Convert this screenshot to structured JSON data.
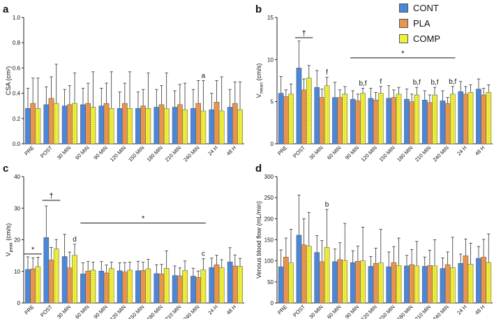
{
  "legend": {
    "items": [
      {
        "label": "CONT",
        "color": "#4A86D9"
      },
      {
        "label": "PLA",
        "color": "#E8944E"
      },
      {
        "label": "COMP",
        "color": "#F0F03C"
      }
    ]
  },
  "chart_data": [
    {
      "panel": "a",
      "type": "bar",
      "ylabel": "CSA (cm²)",
      "ylim": [
        0,
        1.0
      ],
      "yticks": [
        "0.0",
        "0.2",
        "0.4",
        "0.6",
        "0.8",
        "1.0"
      ],
      "categories": [
        "PRE",
        "POST",
        "30 MIN",
        "60 MIN",
        "90 MIN",
        "120 MIN",
        "150 MIN",
        "180 MIN",
        "210 MIN",
        "240 MIN",
        "24 H",
        "48 H"
      ],
      "series": [
        {
          "name": "CONT",
          "values": [
            0.28,
            0.31,
            0.3,
            0.31,
            0.3,
            0.28,
            0.28,
            0.29,
            0.29,
            0.28,
            0.27,
            0.29
          ],
          "errors": [
            0.16,
            0.14,
            0.13,
            0.13,
            0.14,
            0.13,
            0.13,
            0.14,
            0.13,
            0.15,
            0.13,
            0.14
          ]
        },
        {
          "name": "PLA",
          "values": [
            0.32,
            0.36,
            0.31,
            0.32,
            0.32,
            0.32,
            0.3,
            0.31,
            0.31,
            0.32,
            0.33,
            0.32
          ],
          "errors": [
            0.2,
            0.17,
            0.15,
            0.16,
            0.16,
            0.16,
            0.13,
            0.15,
            0.16,
            0.18,
            0.17,
            0.17
          ]
        },
        {
          "name": "COMP",
          "values": [
            0.28,
            0.32,
            0.32,
            0.29,
            0.28,
            0.28,
            0.28,
            0.28,
            0.27,
            0.26,
            0.26,
            0.27
          ],
          "errors": [
            0.24,
            0.31,
            0.24,
            0.28,
            0.29,
            0.29,
            0.28,
            0.28,
            0.21,
            0.24,
            0.27,
            0.22
          ]
        }
      ],
      "annotations": [
        {
          "text": "a",
          "category": "240 MIN",
          "series": "COMP"
        }
      ],
      "brackets": []
    },
    {
      "panel": "b",
      "type": "bar",
      "ylabel_main": "V",
      "ylabel_sub": "mean",
      "ylabel_unit": " (cm/s)",
      "ylim": [
        0,
        15
      ],
      "yticks": [
        "0",
        "5",
        "10",
        "15"
      ],
      "categories": [
        "PRE",
        "POST",
        "30 MIN",
        "60 MIN",
        "90 MIN",
        "120 MIN",
        "150 MIN",
        "180 MIN",
        "210 MIN",
        "240 MIN",
        "24 H",
        "48 H"
      ],
      "series": [
        {
          "name": "CONT",
          "values": [
            6.0,
            9.0,
            6.7,
            5.5,
            5.3,
            5.4,
            5.4,
            5.3,
            5.2,
            5.1,
            6.2,
            6.5
          ],
          "errors": [
            2.0,
            3.2,
            2.0,
            1.8,
            1.0,
            1.2,
            1.5,
            1.2,
            1.1,
            1.2,
            1.2,
            1.2
          ]
        },
        {
          "name": "PLA",
          "values": [
            5.6,
            6.4,
            5.5,
            5.5,
            5.1,
            5.2,
            5.5,
            5.0,
            4.9,
            4.8,
            5.9,
            5.8
          ],
          "errors": [
            0.8,
            1.3,
            1.0,
            0.9,
            0.8,
            0.9,
            0.9,
            0.9,
            0.9,
            0.7,
            0.9,
            0.8
          ]
        },
        {
          "name": "COMP",
          "values": [
            5.9,
            7.8,
            6.9,
            5.9,
            6.0,
            6.0,
            5.9,
            5.8,
            5.8,
            5.9,
            6.1,
            6.1
          ],
          "errors": [
            1.2,
            1.5,
            1.0,
            0.9,
            0.6,
            0.8,
            0.8,
            0.9,
            0.9,
            0.9,
            0.9,
            0.9
          ]
        }
      ],
      "annotations": [
        {
          "text": "f",
          "category": "30 MIN",
          "series": "COMP"
        },
        {
          "text": "b,f",
          "category": "90 MIN",
          "series": "COMP"
        },
        {
          "text": "f",
          "category": "120 MIN",
          "series": "COMP"
        },
        {
          "text": "b,f",
          "category": "180 MIN",
          "series": "COMP"
        },
        {
          "text": "b,f",
          "category": "210 MIN",
          "series": "COMP"
        },
        {
          "text": "b,f",
          "category": "240 MIN",
          "series": "COMP"
        }
      ],
      "brackets": [
        {
          "text": "†",
          "from": "POST",
          "to": "POST",
          "level": 12.6
        },
        {
          "text": "*",
          "from": "90 MIN",
          "to": "240 MIN",
          "level": 10.2
        }
      ]
    },
    {
      "panel": "c",
      "type": "bar",
      "ylabel_main": "V",
      "ylabel_sub": "peak",
      "ylabel_unit": " (cm/s)",
      "ylim": [
        0,
        40
      ],
      "yticks": [
        "0",
        "10",
        "20",
        "30",
        "40"
      ],
      "categories": [
        "PRE",
        "POST",
        "30 MIN",
        "60 MIN",
        "90 MIN",
        "120 MIN",
        "150 MIN",
        "180 MIN",
        "210 MIN",
        "240 MIN",
        "24 H",
        "48 H"
      ],
      "series": [
        {
          "name": "CONT",
          "values": [
            10.6,
            20.7,
            14.7,
            9.2,
            10.1,
            10.2,
            10.2,
            9.3,
            8.7,
            8.5,
            11.2,
            13.0
          ],
          "errors": [
            4.0,
            10.0,
            7.0,
            3.5,
            3.0,
            2.5,
            3.0,
            2.8,
            3.0,
            2.5,
            3.0,
            4.5
          ]
        },
        {
          "name": "PLA",
          "values": [
            10.8,
            13.6,
            11.1,
            10.1,
            9.5,
            9.8,
            10.3,
            9.2,
            8.6,
            8.1,
            12.1,
            11.7
          ],
          "errors": [
            3.5,
            4.0,
            5.0,
            3.0,
            2.5,
            3.0,
            2.6,
            3.0,
            2.5,
            2.0,
            3.0,
            3.5
          ]
        },
        {
          "name": "COMP",
          "values": [
            11.5,
            17.1,
            15.1,
            10.4,
            10.9,
            10.4,
            10.8,
            11.0,
            10.3,
            10.5,
            11.2,
            11.6
          ],
          "errors": [
            3.0,
            3.0,
            3.5,
            2.5,
            2.0,
            2.5,
            3.0,
            5.5,
            3.0,
            3.5,
            2.5,
            2.5
          ]
        }
      ],
      "annotations": [
        {
          "text": "d",
          "category": "30 MIN",
          "series": "COMP"
        },
        {
          "text": "c",
          "category": "240 MIN",
          "series": "COMP"
        }
      ],
      "brackets": [
        {
          "text": "*",
          "from": "PRE",
          "to": "PRE",
          "level": 15.5
        },
        {
          "text": "†",
          "from": "POST",
          "to": "POST",
          "level": 32.5
        },
        {
          "text": "*",
          "from": "60 MIN",
          "to": "240 MIN",
          "level": 25.3
        }
      ]
    },
    {
      "panel": "d",
      "type": "bar",
      "ylabel": "Venous blood flow (mL/min)",
      "ylim": [
        0,
        300
      ],
      "yticks": [
        "0",
        "50",
        "100",
        "150",
        "200",
        "250",
        "300"
      ],
      "categories": [
        "PRE",
        "POST",
        "30 MIN",
        "60 MIN",
        "90 MIN",
        "120 MIN",
        "150 MIN",
        "180 MIN",
        "210 MIN",
        "240 MIN",
        "24 H",
        "48 H"
      ],
      "series": [
        {
          "name": "CONT",
          "values": [
            86,
            161,
            120,
            98,
            96,
            87,
            86,
            88,
            87,
            82,
            94,
            106
          ],
          "errors": [
            40,
            95,
            40,
            30,
            28,
            23,
            35,
            25,
            22,
            25,
            22,
            28
          ]
        },
        {
          "name": "PLA",
          "values": [
            109,
            138,
            98,
            103,
            99,
            94,
            96,
            91,
            89,
            91,
            112,
            109
          ],
          "errors": [
            45,
            62,
            50,
            40,
            36,
            36,
            38,
            36,
            36,
            30,
            40,
            42
          ]
        },
        {
          "name": "COMP",
          "values": [
            95,
            135,
            132,
            101,
            100,
            95,
            89,
            88,
            88,
            84,
            92,
            96
          ],
          "errors": [
            80,
            80,
            90,
            88,
            80,
            80,
            65,
            58,
            62,
            72,
            50,
            68
          ]
        }
      ],
      "annotations": [
        {
          "text": "b",
          "category": "30 MIN",
          "series": "COMP"
        }
      ],
      "brackets": []
    }
  ]
}
